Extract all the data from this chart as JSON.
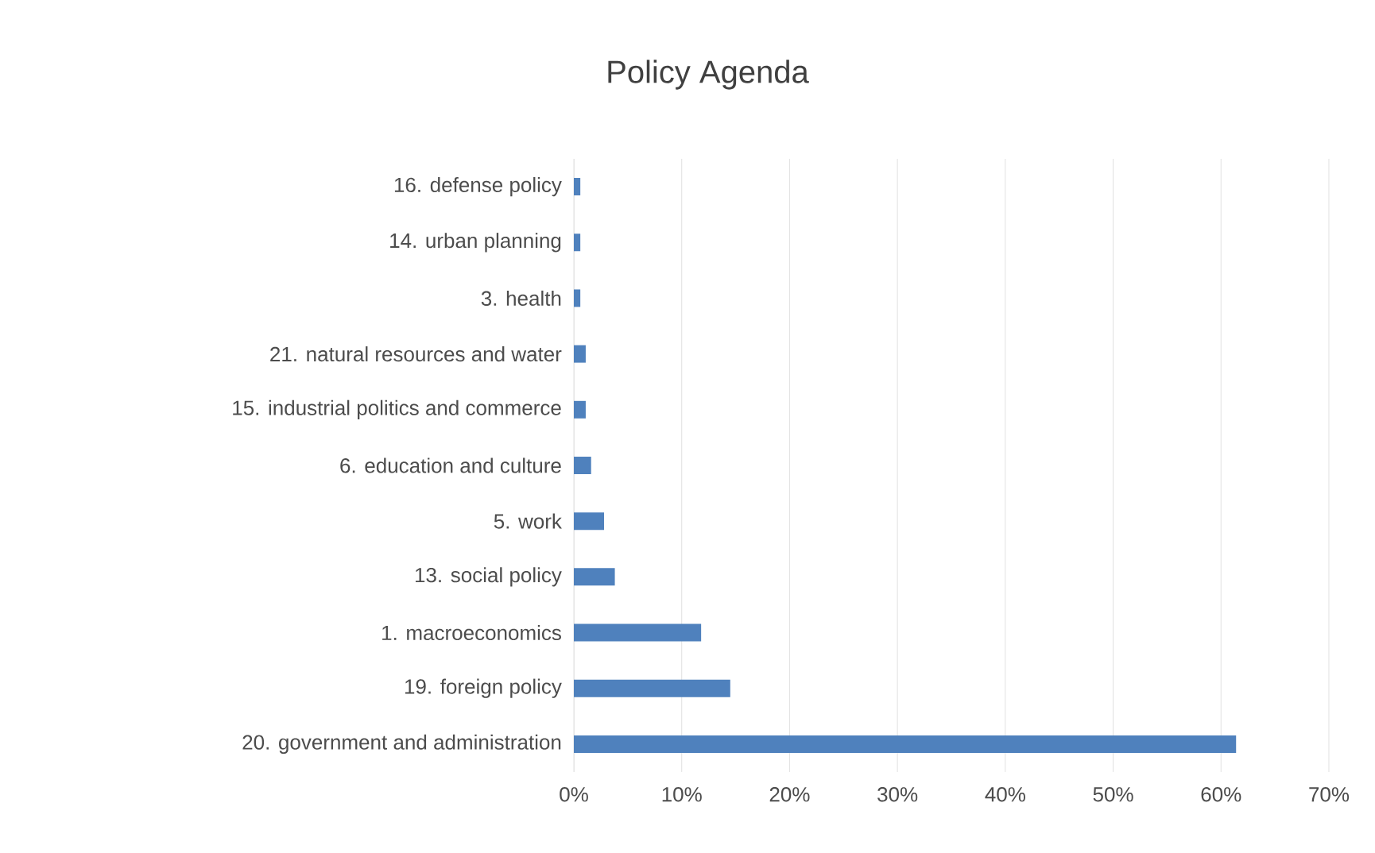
{
  "chart_data": {
    "type": "bar",
    "orientation": "horizontal",
    "title": "Policy Agenda",
    "categories": [
      "16. defense policy",
      "14. urban planning",
      "3. health",
      "21. natural resources and water",
      "15. industrial politics and commerce",
      "6. education and culture",
      "5. work",
      "13. social policy",
      "1. macroeconomics",
      "19. foreign policy",
      "20. government and administration"
    ],
    "values": [
      0.6,
      0.6,
      0.6,
      1.1,
      1.1,
      1.6,
      2.8,
      3.8,
      11.8,
      14.5,
      61.4
    ],
    "color": "#4f81bd",
    "xlim": [
      0,
      70
    ],
    "xticks": [
      {
        "value": 0,
        "label": "0%"
      },
      {
        "value": 10,
        "label": "10%"
      },
      {
        "value": 20,
        "label": "20%"
      },
      {
        "value": 30,
        "label": "30%"
      },
      {
        "value": 40,
        "label": "40%"
      },
      {
        "value": 50,
        "label": "50%"
      },
      {
        "value": 60,
        "label": "60%"
      },
      {
        "value": 70,
        "label": "70%"
      }
    ],
    "grid": "x"
  }
}
